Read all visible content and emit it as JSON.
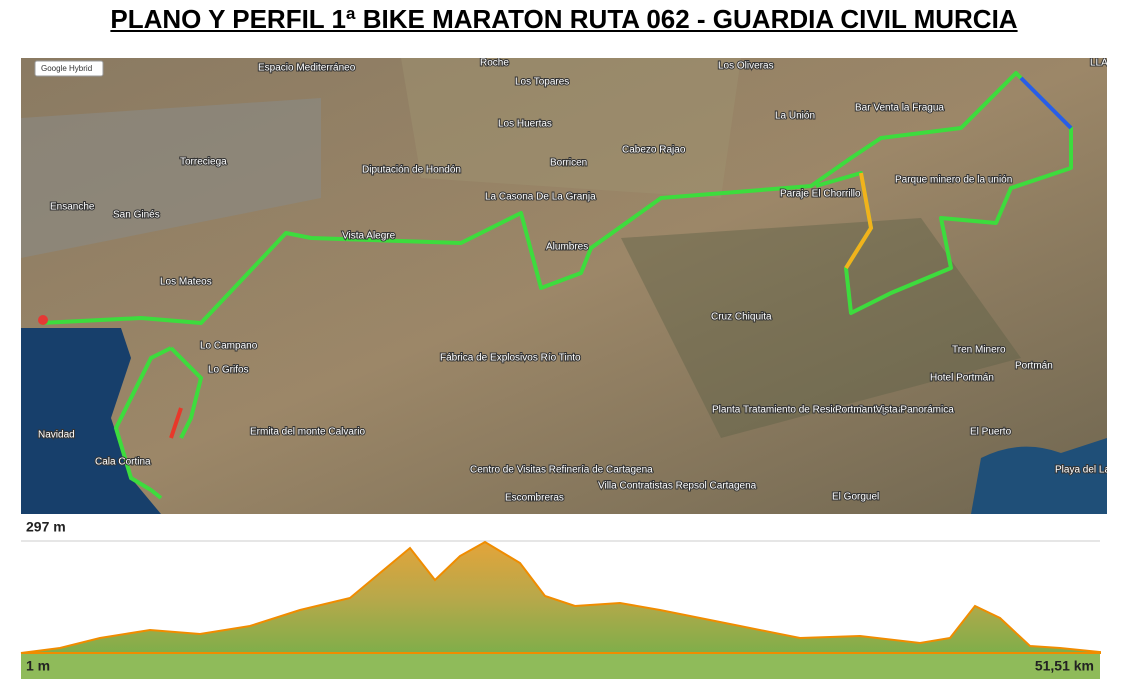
{
  "header": {
    "title": "PLANO Y PERFIL 1ª BIKE MARATON RUTA 062 - GUARDIA CIVIL MURCIA"
  },
  "map": {
    "layer_select": "Google Hybrid",
    "places": [
      "Roche",
      "Los Topares",
      "Los Oliveras",
      "LLANO",
      "Espacio Mediterráneo",
      "Los Huertas",
      "La Unión",
      "Bar Venta la Fragua",
      "Diputación de Hondón",
      "Borricen",
      "Cabezo Rajao",
      "Torreciega",
      "Ensanche",
      "San Ginés",
      "La Casona De La Granja",
      "Vista Alegre",
      "Alumbres",
      "Paraje El Chorrillo",
      "Parque minero de la unión",
      "Los Mateos",
      "Cruz Chiquita",
      "Lo Campano",
      "Lo Grifos",
      "Fábrica de Explosivos Río Tinto",
      "Tren Minero",
      "Hotel Portmán",
      "Portmán",
      "Planta Tratamiento de Residuos Cartagena",
      "Portman Vista Panorámica",
      "El Puerto",
      "Ermita del monte Calvario",
      "Navidad",
      "Cala Cortina",
      "Centro de Visitas Refinería de Cartagena",
      "Villa Contratistas Repsol Cartagena",
      "Escombreras",
      "El Gorguel",
      "Playa del Lastre"
    ]
  },
  "profile": {
    "max_label": "297 m",
    "min_label": "1 m",
    "distance_label": "51,51 km"
  }
}
